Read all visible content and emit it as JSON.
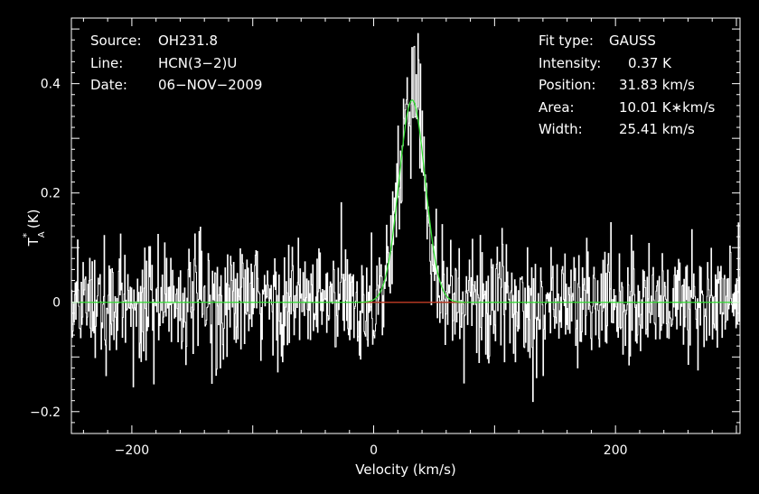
{
  "chart_data": {
    "type": "line",
    "xlabel": "Velocity (km/s)",
    "ylabel_main": "T",
    "ylabel_super": "*",
    "ylabel_sub": "A",
    "ylabel_unit": " (K)",
    "xlim": [
      -250,
      303
    ],
    "ylim": [
      -0.24,
      0.52
    ],
    "xticks": [
      -200,
      0,
      200
    ],
    "xtick_labels": [
      "−200",
      "0",
      "200"
    ],
    "yticks": [
      -0.2,
      0,
      0.2,
      0.4
    ],
    "ytick_labels": [
      "−0.2",
      "0",
      "0.2",
      "0.4"
    ],
    "grid": false,
    "spectrum": {
      "name": "",
      "color": "#ffffff",
      "x_start": -250,
      "x_end": 303,
      "channel_width": 0.5,
      "noise_rms": 0.055,
      "peak_observed": 0.5
    },
    "gaussian_fit": {
      "color": "#33dd33",
      "intensity": 0.37,
      "position": 31.83,
      "width_fwhm": 25.41
    },
    "baseline": {
      "color": "#33dd33",
      "fit_region_color": "#cc2222",
      "y": 0
    },
    "info_left": {
      "source_label": "Source:",
      "source_value": "OH231.8",
      "line_label": "Line:",
      "line_value": "HCN(3−2)U",
      "date_label": "Date:",
      "date_value": "06−NOV−2009"
    },
    "info_right": {
      "fit_type_label": "Fit type:",
      "fit_type_value": "GAUSS",
      "intensity_label": "Intensity:",
      "intensity_value": "0.37 K",
      "position_label": "Position:",
      "position_value": "31.83 km/s",
      "area_label": "Area:",
      "area_value": "10.01 K∗km/s",
      "width_label": "Width:",
      "width_value": "25.41 km/s"
    }
  }
}
